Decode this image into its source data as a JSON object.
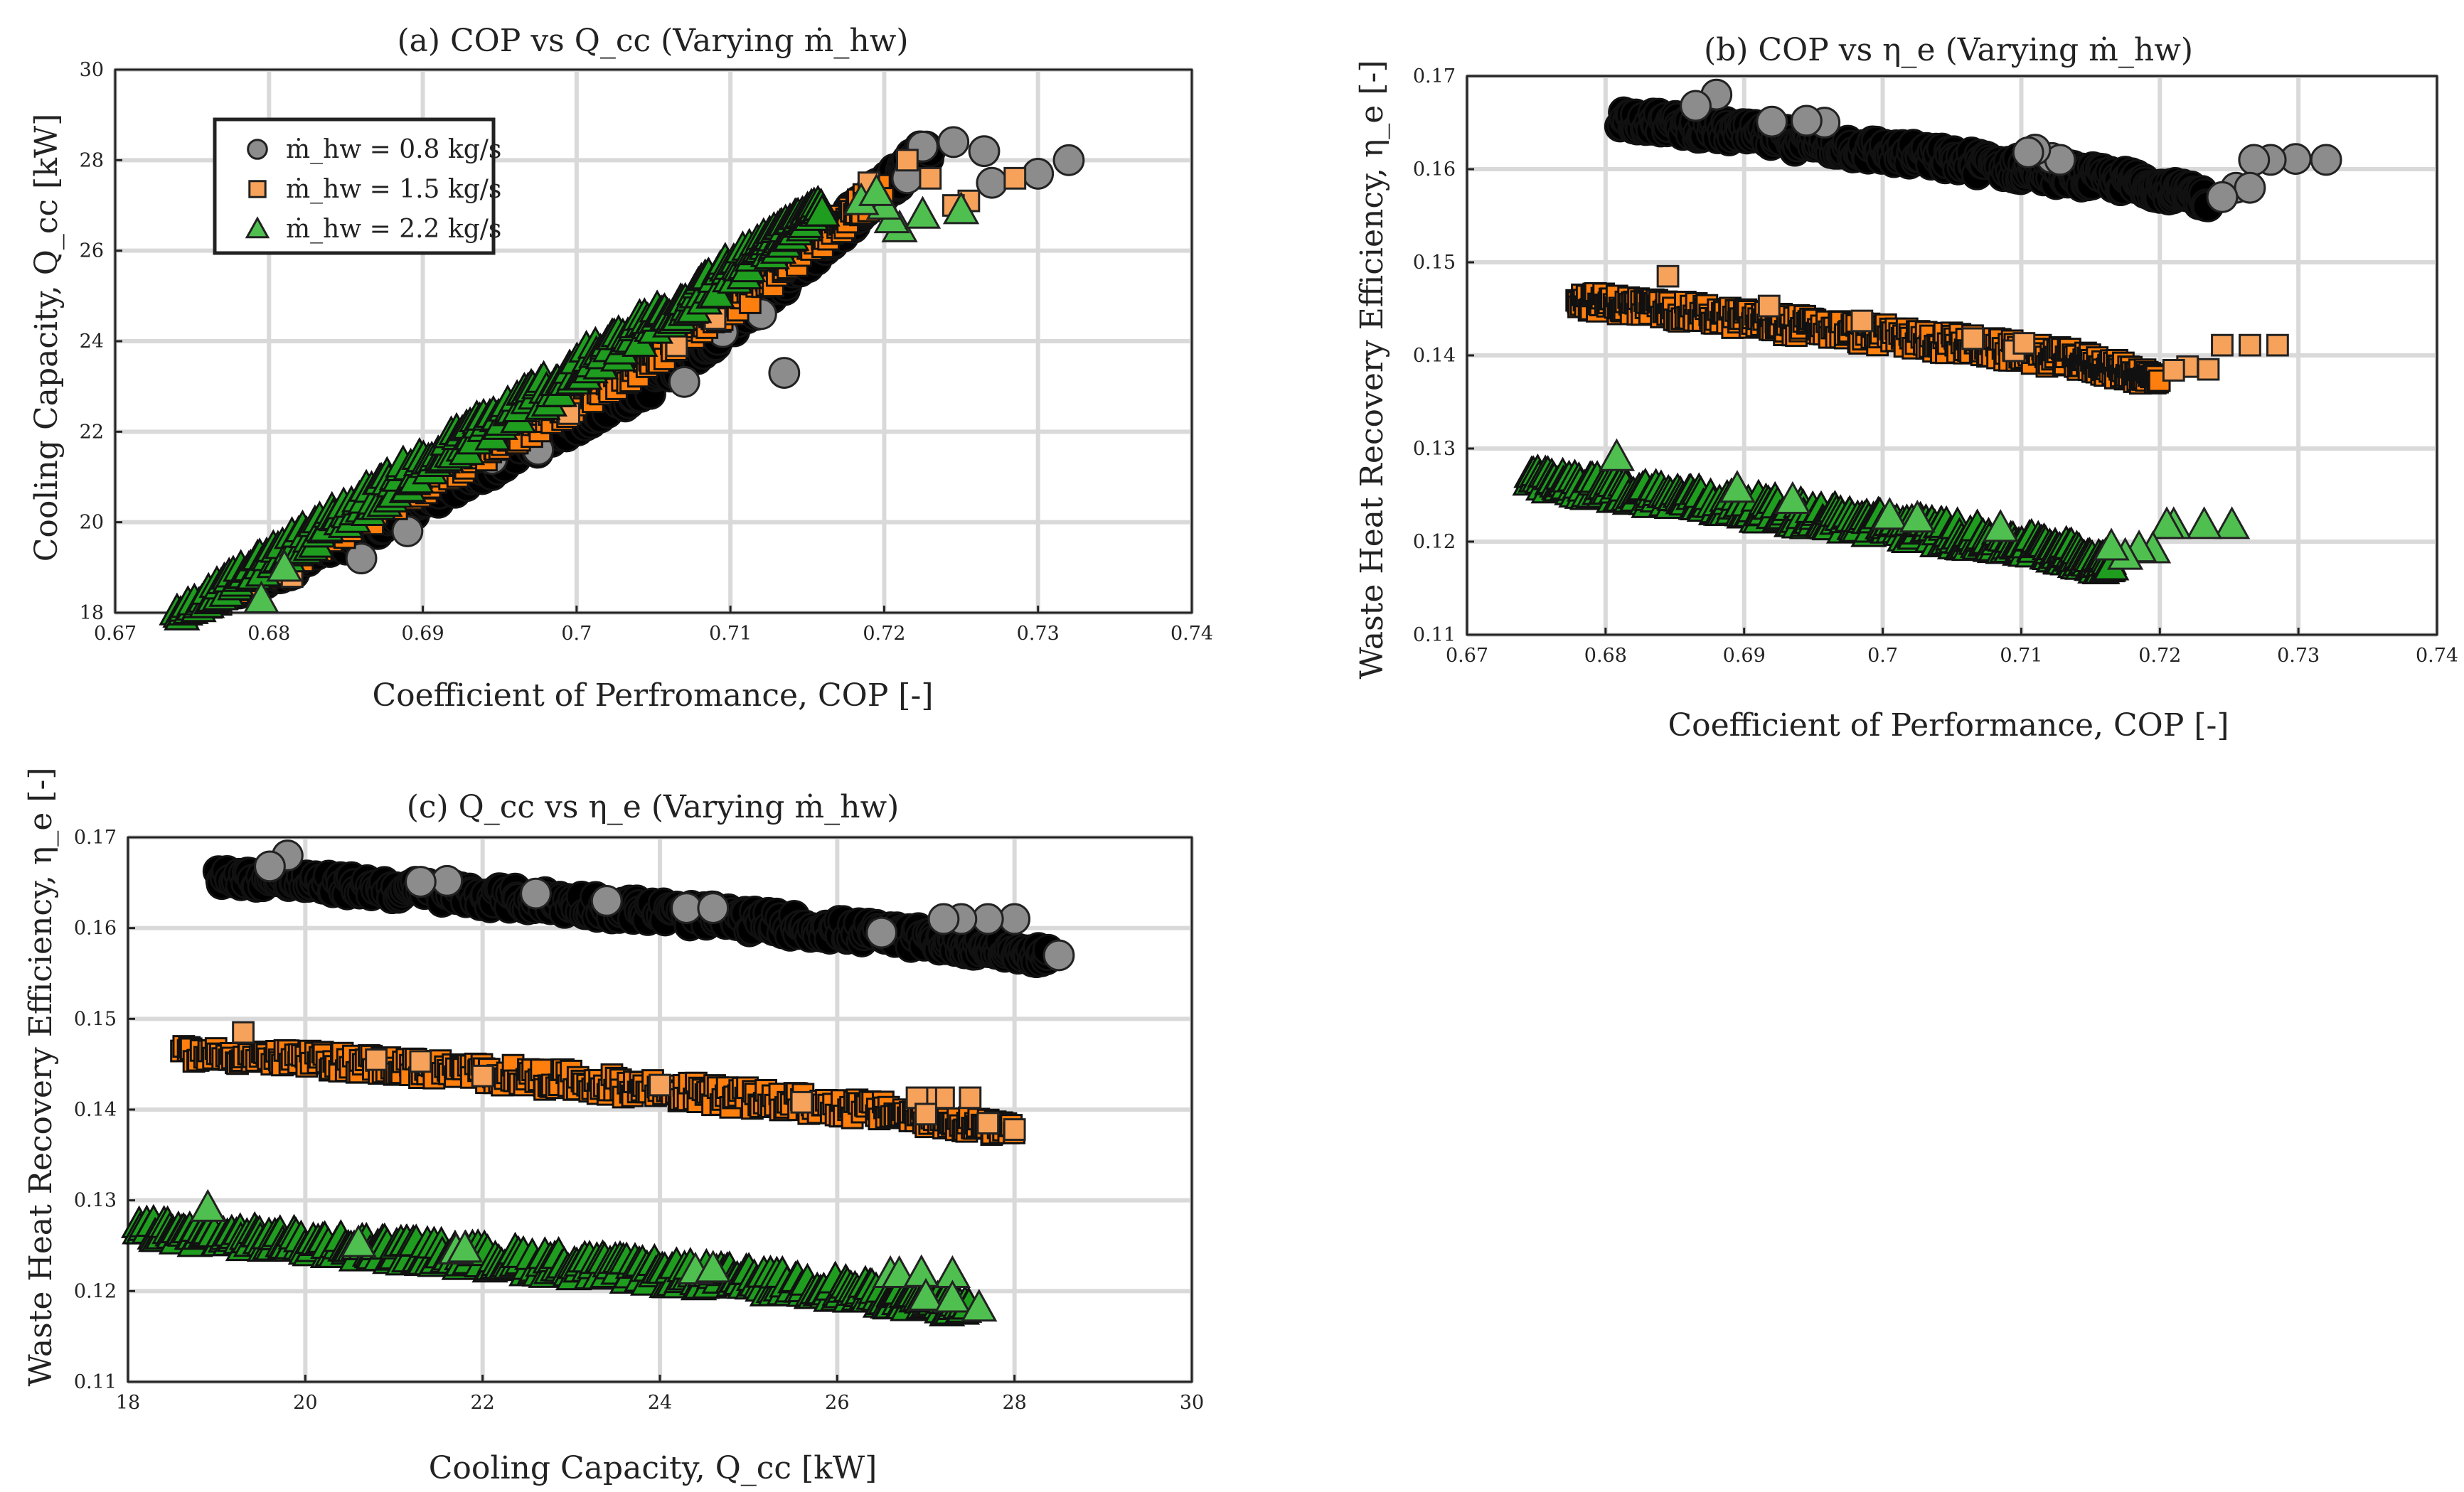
{
  "colors": {
    "series_0.8": "#000000",
    "series_0.8_edge_point": "#8c8c8c",
    "series_1.5": "#ff7f0e",
    "series_1.5_edge_point": "#f7a25a",
    "series_2.2": "#1f9d1f",
    "series_2.2_edge_point": "#4fc04f",
    "grid": "#d9d9d9"
  },
  "chart_data": [
    {
      "type": "scatter",
      "panel": "a",
      "title": "(a) COP vs Q_cc (Varying ṁ_hw)",
      "xlabel": "Coefficient of Perfromance, COP [-]",
      "ylabel": "Cooling Capacity, Q_cc [kW]",
      "xlim": [
        0.67,
        0.74
      ],
      "ylim": [
        18,
        30
      ],
      "xticks": [
        "0.67",
        "0.68",
        "0.69",
        "0.7",
        "0.71",
        "0.72",
        "0.73",
        "0.74"
      ],
      "yticks": [
        "18",
        "20",
        "22",
        "24",
        "26",
        "28",
        "30"
      ],
      "grid": true,
      "legend": {
        "position": "top-left",
        "entries": [
          "ṁ_hw = 0.8 kg/s",
          "ṁ_hw = 1.5 kg/s",
          "ṁ_hw = 2.2 kg/s"
        ]
      },
      "series": [
        {
          "name": "ṁ_hw = 0.8 kg/s",
          "marker": "circle",
          "band": [
            [
              0.678,
              18.5,
              0.22
            ],
            [
              0.686,
              19.8,
              0.25
            ],
            [
              0.695,
              21.4,
              0.3
            ],
            [
              0.705,
              23.2,
              0.35
            ],
            [
              0.712,
              25.0,
              0.35
            ],
            [
              0.718,
              26.8,
              0.3
            ],
            [
              0.723,
              28.3,
              0.25
            ]
          ],
          "points": [
            [
              0.732,
              28.0
            ],
            [
              0.73,
              27.7
            ],
            [
              0.727,
              27.5
            ],
            [
              0.7265,
              28.2
            ],
            [
              0.7245,
              28.4
            ],
            [
              0.7225,
              28.3
            ],
            [
              0.7215,
              27.6
            ],
            [
              0.712,
              24.6
            ],
            [
              0.7095,
              24.2
            ],
            [
              0.707,
              23.1
            ],
            [
              0.6975,
              21.6
            ],
            [
              0.6945,
              21.4
            ],
            [
              0.686,
              19.2
            ],
            [
              0.689,
              19.8
            ],
            [
              0.7135,
              23.3
            ]
          ]
        },
        {
          "name": "ṁ_hw = 1.5 kg/s",
          "marker": "square",
          "band": [
            [
              0.676,
              18.2,
              0.18
            ],
            [
              0.684,
              19.7,
              0.25
            ],
            [
              0.694,
              21.6,
              0.3
            ],
            [
              0.704,
              23.5,
              0.3
            ],
            [
              0.712,
              25.3,
              0.3
            ],
            [
              0.72,
              27.4,
              0.25
            ]
          ],
          "points": [
            [
              0.7285,
              27.6
            ],
            [
              0.7255,
              27.1
            ],
            [
              0.7245,
              27.0
            ],
            [
              0.723,
              27.6
            ],
            [
              0.7215,
              28.0
            ],
            [
              0.719,
              27.5
            ],
            [
              0.7155,
              26.8
            ],
            [
              0.709,
              24.5
            ],
            [
              0.6815,
              18.8
            ],
            [
              0.6995,
              22.4
            ],
            [
              0.7065,
              23.9
            ]
          ]
        },
        {
          "name": "ṁ_hw = 2.2 kg/s",
          "marker": "triangle",
          "band": [
            [
              0.674,
              17.95,
              0.12
            ],
            [
              0.684,
              20.0,
              0.3
            ],
            [
              0.694,
              22.1,
              0.35
            ],
            [
              0.704,
              24.2,
              0.35
            ],
            [
              0.712,
              26.0,
              0.3
            ],
            [
              0.716,
              27.0,
              0.15
            ]
          ],
          "points": [
            [
              0.6795,
              18.3
            ],
            [
              0.721,
              26.5
            ],
            [
              0.7205,
              26.7
            ],
            [
              0.7225,
              26.8
            ],
            [
              0.725,
              26.9
            ],
            [
              0.72,
              27.0
            ],
            [
              0.7185,
              27.1
            ],
            [
              0.7195,
              27.3
            ],
            [
              0.681,
              19.0
            ]
          ]
        }
      ]
    },
    {
      "type": "scatter",
      "panel": "b",
      "title": "(b) COP vs η_e (Varying ṁ_hw)",
      "xlabel": "Coefficient of Performance, COP [-]",
      "ylabel": "Waste Heat Recovery Efficiency, η_e [-]",
      "xlim": [
        0.67,
        0.74
      ],
      "ylim": [
        0.11,
        0.17
      ],
      "xticks": [
        "0.67",
        "0.68",
        "0.69",
        "0.7",
        "0.71",
        "0.72",
        "0.73",
        "0.74"
      ],
      "yticks": [
        "0.11",
        "0.12",
        "0.13",
        "0.14",
        "0.15",
        "0.16",
        "0.17"
      ],
      "grid": true,
      "series": [
        {
          "name": "ṁ_hw = 0.8 kg/s",
          "marker": "circle",
          "band": [
            [
              0.681,
              0.1655,
              0.001
            ],
            [
              0.69,
              0.1638,
              0.0011
            ],
            [
              0.7,
              0.1619,
              0.0012
            ],
            [
              0.71,
              0.16,
              0.0012
            ],
            [
              0.718,
              0.1586,
              0.0011
            ],
            [
              0.7235,
              0.1568,
              0.0009
            ]
          ],
          "points": [
            [
              0.688,
              0.168
            ],
            [
              0.6865,
              0.1668
            ],
            [
              0.732,
              0.161
            ],
            [
              0.7298,
              0.1611
            ],
            [
              0.728,
              0.161
            ],
            [
              0.7268,
              0.161
            ],
            [
              0.7255,
              0.158
            ],
            [
              0.7265,
              0.158
            ],
            [
              0.7245,
              0.157
            ],
            [
              0.7122,
              0.1612
            ],
            [
              0.7128,
              0.161
            ],
            [
              0.711,
              0.1621
            ],
            [
              0.7105,
              0.1618
            ],
            [
              0.6958,
              0.165
            ],
            [
              0.6945,
              0.1652
            ],
            [
              0.692,
              0.1651
            ]
          ]
        },
        {
          "name": "ṁ_hw = 1.5 kg/s",
          "marker": "square",
          "band": [
            [
              0.6778,
              0.146,
              0.001
            ],
            [
              0.686,
              0.1446,
              0.0011
            ],
            [
              0.695,
              0.143,
              0.0012
            ],
            [
              0.705,
              0.1413,
              0.0012
            ],
            [
              0.714,
              0.1395,
              0.0011
            ],
            [
              0.72,
              0.1374,
              0.0009
            ]
          ],
          "points": [
            [
              0.6845,
              0.1485
            ],
            [
              0.7285,
              0.1411
            ],
            [
              0.7265,
              0.1411
            ],
            [
              0.7245,
              0.1411
            ],
            [
              0.7235,
              0.1385
            ],
            [
              0.722,
              0.1388
            ],
            [
              0.721,
              0.1384
            ],
            [
              0.7095,
              0.1405
            ],
            [
              0.7065,
              0.1418
            ],
            [
              0.6985,
              0.1437
            ],
            [
              0.6918,
              0.1453
            ],
            [
              0.7102,
              0.1413
            ]
          ]
        },
        {
          "name": "ṁ_hw = 2.2 kg/s",
          "marker": "triangle",
          "band": [
            [
              0.6745,
              0.1266,
              0.001
            ],
            [
              0.684,
              0.125,
              0.0011
            ],
            [
              0.694,
              0.123,
              0.0012
            ],
            [
              0.704,
              0.121,
              0.0012
            ],
            [
              0.712,
              0.1193,
              0.0011
            ],
            [
              0.7165,
              0.1175,
              0.0009
            ]
          ],
          "points": [
            [
              0.6808,
              0.1291
            ],
            [
              0.7252,
              0.1218
            ],
            [
              0.7232,
              0.1218
            ],
            [
              0.721,
              0.1218
            ],
            [
              0.7205,
              0.1218
            ],
            [
              0.7195,
              0.1192
            ],
            [
              0.7185,
              0.1193
            ],
            [
              0.7175,
              0.1185
            ],
            [
              0.7165,
              0.1195
            ],
            [
              0.7005,
              0.1228
            ],
            [
              0.7025,
              0.1225
            ],
            [
              0.6935,
              0.1245
            ],
            [
              0.6895,
              0.1257
            ],
            [
              0.7085,
              0.1215
            ]
          ]
        }
      ]
    },
    {
      "type": "scatter",
      "panel": "c",
      "title": "(c) Q_cc vs η_e (Varying ṁ_hw)",
      "xlabel": "Cooling Capacity, Q_cc [kW]",
      "ylabel": "Waste Heat Recovery Efficiency, η_e [-]",
      "xlim": [
        18,
        30
      ],
      "ylim": [
        0.11,
        0.17
      ],
      "xticks": [
        "18",
        "20",
        "22",
        "24",
        "26",
        "28",
        "30"
      ],
      "yticks": [
        "0.11",
        "0.12",
        "0.13",
        "0.14",
        "0.15",
        "0.16",
        "0.17"
      ],
      "grid": true,
      "series": [
        {
          "name": "ṁ_hw = 0.8 kg/s",
          "marker": "circle",
          "band": [
            [
              19.0,
              0.1657,
              0.0008
            ],
            [
              21.0,
              0.1643,
              0.0011
            ],
            [
              23.0,
              0.1627,
              0.0012
            ],
            [
              25.0,
              0.1608,
              0.0012
            ],
            [
              27.0,
              0.1588,
              0.0011
            ],
            [
              28.4,
              0.1568,
              0.0008
            ]
          ],
          "points": [
            [
              19.8,
              0.168
            ],
            [
              19.6,
              0.1668
            ],
            [
              28.5,
              0.157
            ],
            [
              28.0,
              0.161
            ],
            [
              27.7,
              0.161
            ],
            [
              27.4,
              0.161
            ],
            [
              27.2,
              0.161
            ],
            [
              26.5,
              0.1595
            ],
            [
              24.3,
              0.1622
            ],
            [
              24.6,
              0.1622
            ],
            [
              22.6,
              0.1638
            ],
            [
              23.4,
              0.163
            ],
            [
              21.6,
              0.1652
            ],
            [
              21.3,
              0.1651
            ]
          ]
        },
        {
          "name": "ṁ_hw = 1.5 kg/s",
          "marker": "square",
          "band": [
            [
              18.6,
              0.1462,
              0.0008
            ],
            [
              20.5,
              0.1452,
              0.0011
            ],
            [
              22.5,
              0.1436,
              0.0012
            ],
            [
              24.5,
              0.1417,
              0.0012
            ],
            [
              26.5,
              0.1398,
              0.0011
            ],
            [
              28.0,
              0.1376,
              0.0008
            ]
          ],
          "points": [
            [
              19.3,
              0.1485
            ],
            [
              27.5,
              0.1413
            ],
            [
              27.2,
              0.1413
            ],
            [
              27.0,
              0.1413
            ],
            [
              26.9,
              0.1413
            ],
            [
              27.0,
              0.1395
            ],
            [
              27.7,
              0.1385
            ],
            [
              28.0,
              0.1378
            ],
            [
              24.0,
              0.1427
            ],
            [
              25.6,
              0.1408
            ],
            [
              22.0,
              0.1437
            ],
            [
              20.8,
              0.1455
            ],
            [
              21.3,
              0.1453
            ]
          ]
        },
        {
          "name": "ṁ_hw = 2.2 kg/s",
          "marker": "triangle",
          "band": [
            [
              18.1,
              0.1268,
              0.0009
            ],
            [
              20.0,
              0.1253,
              0.0011
            ],
            [
              22.0,
              0.1237,
              0.0012
            ],
            [
              24.0,
              0.122,
              0.0012
            ],
            [
              26.0,
              0.1203,
              0.0011
            ],
            [
              27.5,
              0.118,
              0.0008
            ]
          ],
          "points": [
            [
              18.9,
              0.1292
            ],
            [
              27.3,
              0.1219
            ],
            [
              26.6,
              0.1219
            ],
            [
              26.7,
              0.1219
            ],
            [
              26.95,
              0.122
            ],
            [
              27.0,
              0.1194
            ],
            [
              27.3,
              0.1192
            ],
            [
              27.6,
              0.1182
            ],
            [
              24.4,
              0.1223
            ],
            [
              24.6,
              0.1225
            ],
            [
              21.7,
              0.1245
            ],
            [
              21.8,
              0.1247
            ],
            [
              20.6,
              0.1253
            ]
          ]
        }
      ]
    }
  ]
}
